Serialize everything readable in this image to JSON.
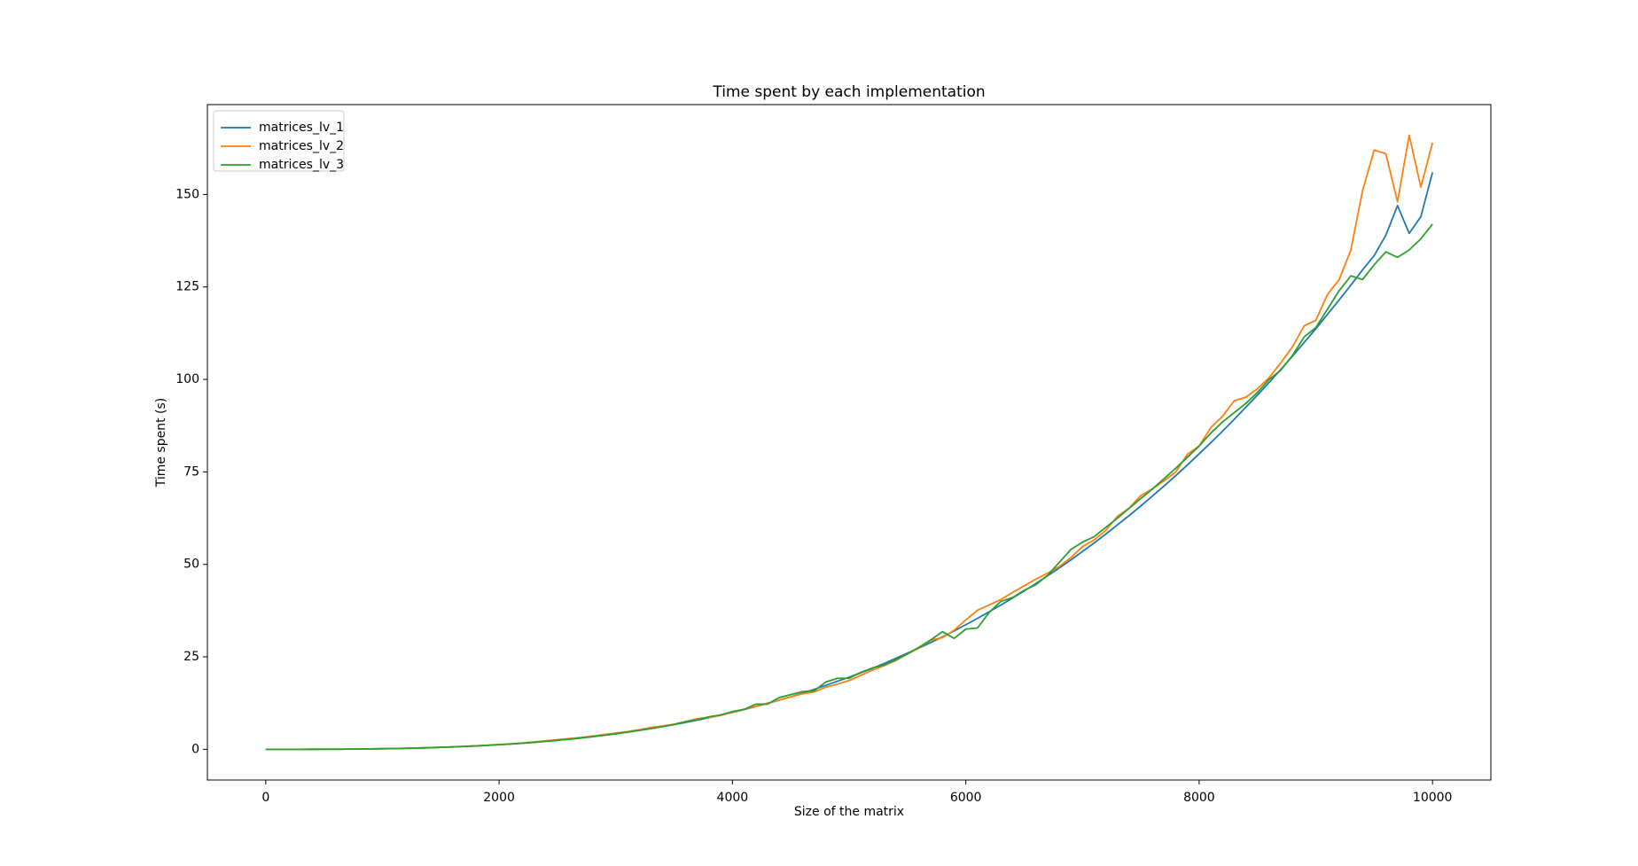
{
  "chart_data": {
    "type": "line",
    "title": "Time spent by each implementation",
    "xlabel": "Size of the matrix",
    "ylabel": "Time spent (s)",
    "x": [
      0,
      100,
      200,
      300,
      400,
      500,
      600,
      700,
      800,
      900,
      1000,
      1100,
      1200,
      1300,
      1400,
      1500,
      1600,
      1700,
      1800,
      1900,
      2000,
      2100,
      2200,
      2300,
      2400,
      2500,
      2600,
      2700,
      2800,
      2900,
      3000,
      3100,
      3200,
      3300,
      3400,
      3500,
      3600,
      3700,
      3800,
      3900,
      4000,
      4100,
      4200,
      4300,
      4400,
      4500,
      4600,
      4700,
      4800,
      4900,
      5000,
      5100,
      5200,
      5300,
      5400,
      5500,
      5600,
      5700,
      5800,
      5900,
      6000,
      6100,
      6200,
      6300,
      6400,
      6500,
      6600,
      6700,
      6800,
      6900,
      7000,
      7100,
      7200,
      7300,
      7400,
      7500,
      7600,
      7700,
      7800,
      7900,
      8000,
      8100,
      8200,
      8300,
      8400,
      8500,
      8600,
      8700,
      8800,
      8900,
      9000,
      9100,
      9200,
      9300,
      9400,
      9500,
      9600,
      9700,
      9800,
      9900,
      10000
    ],
    "series": [
      {
        "name": "matrices_lv_1",
        "color": "#1f77b4",
        "values": [
          0,
          0,
          0,
          0,
          0.01,
          0.02,
          0.03,
          0.05,
          0.08,
          0.11,
          0.16,
          0.21,
          0.27,
          0.34,
          0.43,
          0.53,
          0.64,
          0.77,
          0.91,
          1.07,
          1.25,
          1.44,
          1.66,
          1.9,
          2.16,
          2.44,
          2.74,
          3.07,
          3.42,
          3.8,
          4.21,
          4.65,
          5.11,
          5.61,
          6.13,
          6.69,
          7.28,
          7.9,
          8.56,
          9.25,
          9.98,
          10.75,
          11.56,
          12.4,
          13.3,
          14.2,
          15.2,
          16.2,
          17.3,
          18.4,
          19.5,
          20.7,
          21.9,
          23.2,
          24.6,
          26,
          27.4,
          28.9,
          30.4,
          32,
          33.7,
          35.4,
          37.2,
          39,
          40.9,
          42.8,
          44.8,
          46.9,
          49,
          51.2,
          53.5,
          55.8,
          58.2,
          60.7,
          63.2,
          65.8,
          68.5,
          71.2,
          74,
          76.9,
          79.9,
          82.9,
          86,
          89.2,
          92.5,
          95.8,
          99.2,
          102.7,
          106.3,
          110,
          113.7,
          117.6,
          121.5,
          125.5,
          129.6,
          133.5,
          139,
          147,
          139.5,
          144,
          156
        ]
      },
      {
        "name": "matrices_lv_2",
        "color": "#ff7f0e",
        "values": [
          0,
          0,
          0,
          0,
          0.01,
          0.02,
          0.03,
          0.05,
          0.08,
          0.11,
          0.16,
          0.21,
          0.27,
          0.34,
          0.43,
          0.53,
          0.66,
          0.8,
          0.95,
          1.1,
          1.3,
          1.5,
          1.7,
          2,
          2.3,
          2.6,
          2.9,
          3.2,
          3.6,
          4,
          4.4,
          4.8,
          5.3,
          5.9,
          6.3,
          6.8,
          7.5,
          8.3,
          8.6,
          9.2,
          10,
          10.8,
          11.6,
          12.5,
          13.3,
          14.2,
          15,
          15.5,
          16.8,
          17.6,
          18.6,
          20,
          21.4,
          22.6,
          24,
          25.8,
          27.4,
          29.5,
          30.2,
          32.2,
          35,
          37.6,
          39,
          40.5,
          42.4,
          44.2,
          46,
          47.6,
          49.4,
          51.8,
          54.8,
          56.6,
          59.2,
          63,
          65.2,
          68.6,
          70.4,
          72.6,
          75,
          79.8,
          82,
          87,
          90,
          94.2,
          95.2,
          97.5,
          100.5,
          104.5,
          108.8,
          114.5,
          116,
          123,
          127,
          135,
          151,
          162,
          161,
          148,
          166,
          152,
          164
        ]
      },
      {
        "name": "matrices_lv_3",
        "color": "#2ca02c",
        "values": [
          0,
          0,
          0,
          0,
          0.01,
          0.02,
          0.03,
          0.05,
          0.08,
          0.11,
          0.16,
          0.21,
          0.27,
          0.34,
          0.43,
          0.53,
          0.64,
          0.77,
          0.91,
          1.07,
          1.25,
          1.44,
          1.66,
          1.9,
          2.16,
          2.44,
          2.74,
          3.07,
          3.42,
          3.8,
          4.21,
          4.65,
          5.11,
          5.61,
          6.13,
          6.69,
          7.5,
          8,
          8.8,
          9.3,
          10.2,
          10.8,
          12.2,
          12.2,
          14,
          14.8,
          15.6,
          15.8,
          18.2,
          19.2,
          19.2,
          20.8,
          22,
          22.8,
          24.2,
          25.8,
          27.6,
          29.6,
          31.8,
          30,
          32.5,
          32.8,
          37,
          40,
          41,
          43,
          44.5,
          47,
          50.5,
          54,
          56,
          57.5,
          60,
          62.5,
          65.2,
          67.8,
          70.4,
          73.2,
          76,
          79,
          82,
          85.5,
          88.5,
          91,
          93.5,
          96.5,
          100,
          102.5,
          106.5,
          111.5,
          114,
          119,
          124,
          128,
          127,
          131,
          134.5,
          133,
          135,
          138,
          142
        ]
      }
    ],
    "xlim": [
      -500,
      10500
    ],
    "xticks": [
      0,
      2000,
      4000,
      6000,
      8000,
      10000
    ],
    "ylim": [
      -8.3,
      174.3
    ],
    "yticks": [
      0,
      25,
      50,
      75,
      100,
      125,
      150
    ],
    "legend": "upper left"
  }
}
